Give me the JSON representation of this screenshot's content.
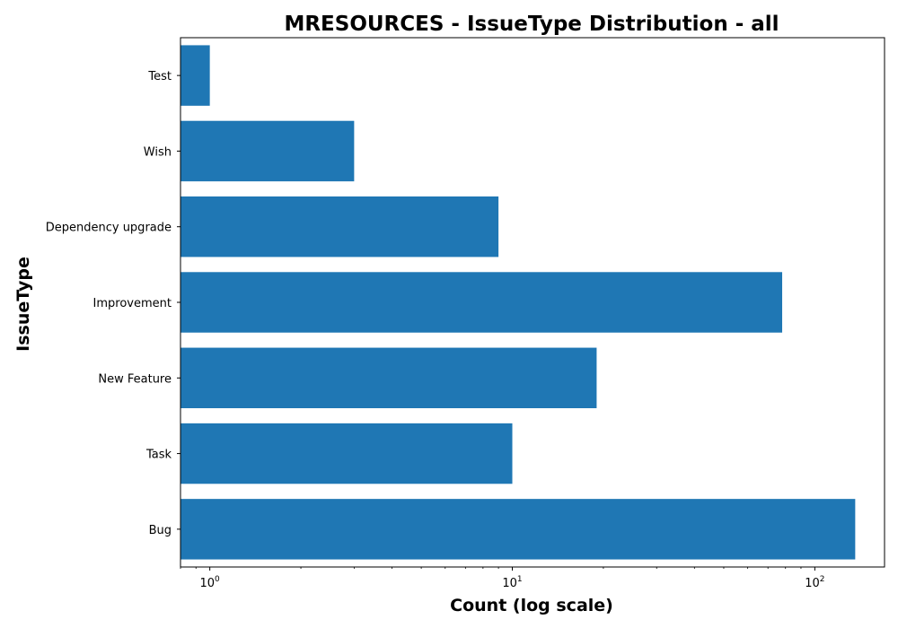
{
  "chart_data": {
    "type": "bar",
    "orientation": "horizontal",
    "title": "MRESOURCES - IssueType Distribution - all",
    "xlabel": "Count (log scale)",
    "ylabel": "IssueType",
    "x_scale": "log",
    "xlim": [
      0.8,
      170
    ],
    "x_ticks": [
      {
        "base": "10",
        "exp": "0",
        "value": 1
      },
      {
        "base": "10",
        "exp": "1",
        "value": 10
      },
      {
        "base": "10",
        "exp": "2",
        "value": 100
      }
    ],
    "categories": [
      "Bug",
      "Task",
      "New Feature",
      "Improvement",
      "Dependency upgrade",
      "Wish",
      "Test"
    ],
    "values": [
      136,
      10,
      19,
      78,
      9,
      3,
      1
    ],
    "bar_color": "#1f77b4",
    "grid": false
  }
}
